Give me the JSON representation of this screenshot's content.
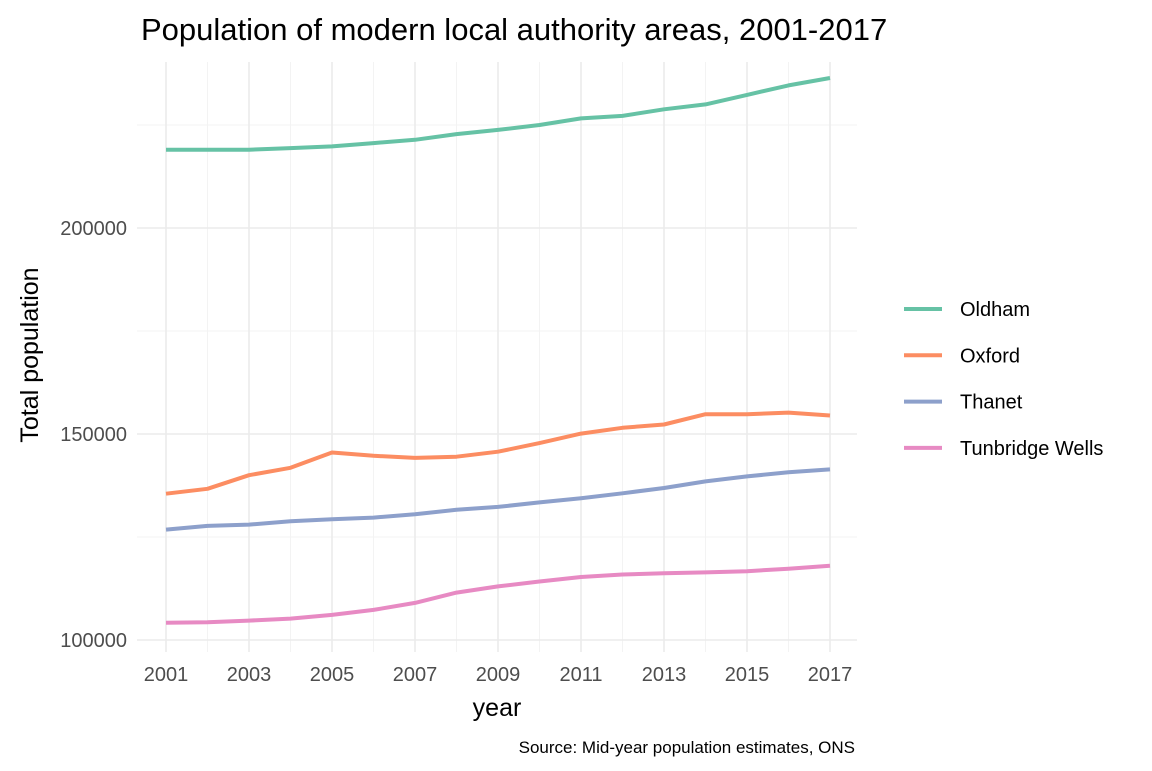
{
  "chart_data": {
    "type": "line",
    "title": "Population of modern local authority areas, 2001-2017",
    "xlabel": "year",
    "ylabel": "Total population",
    "caption": "Source: Mid-year population estimates, ONS",
    "x": [
      2001,
      2002,
      2003,
      2004,
      2005,
      2006,
      2007,
      2008,
      2009,
      2010,
      2011,
      2012,
      2013,
      2014,
      2015,
      2016,
      2017
    ],
    "xlim": [
      2001,
      2017
    ],
    "ylim": [
      100000,
      236000
    ],
    "x_ticks": [
      "2001",
      "2003",
      "2005",
      "2007",
      "2009",
      "2011",
      "2013",
      "2015",
      "2017"
    ],
    "y_ticks": [
      "100000",
      "150000",
      "200000"
    ],
    "grid": true,
    "legend_position": "right",
    "series": [
      {
        "name": "Oldham",
        "color": "#66c2a5",
        "values": [
          219000,
          219000,
          219000,
          219400,
          219800,
          220600,
          221400,
          222800,
          223800,
          225000,
          226600,
          227200,
          228800,
          230000,
          232300,
          234600,
          236400
        ]
      },
      {
        "name": "Oxford",
        "color": "#fc8d62",
        "values": [
          135500,
          136700,
          140000,
          141800,
          145500,
          144700,
          144200,
          144500,
          145700,
          147800,
          150100,
          151500,
          152300,
          154800,
          154800,
          155200,
          154500
        ]
      },
      {
        "name": "Thanet",
        "color": "#8da0cb",
        "values": [
          126800,
          127700,
          128000,
          128800,
          129300,
          129700,
          130500,
          131600,
          132300,
          133400,
          134400,
          135600,
          136900,
          138500,
          139700,
          140700,
          141400
        ]
      },
      {
        "name": "Tunbridge Wells",
        "color": "#e78ac3",
        "values": [
          104200,
          104300,
          104700,
          105200,
          106100,
          107300,
          109000,
          111500,
          113000,
          114200,
          115300,
          115900,
          116200,
          116400,
          116700,
          117300,
          118000
        ]
      }
    ]
  }
}
